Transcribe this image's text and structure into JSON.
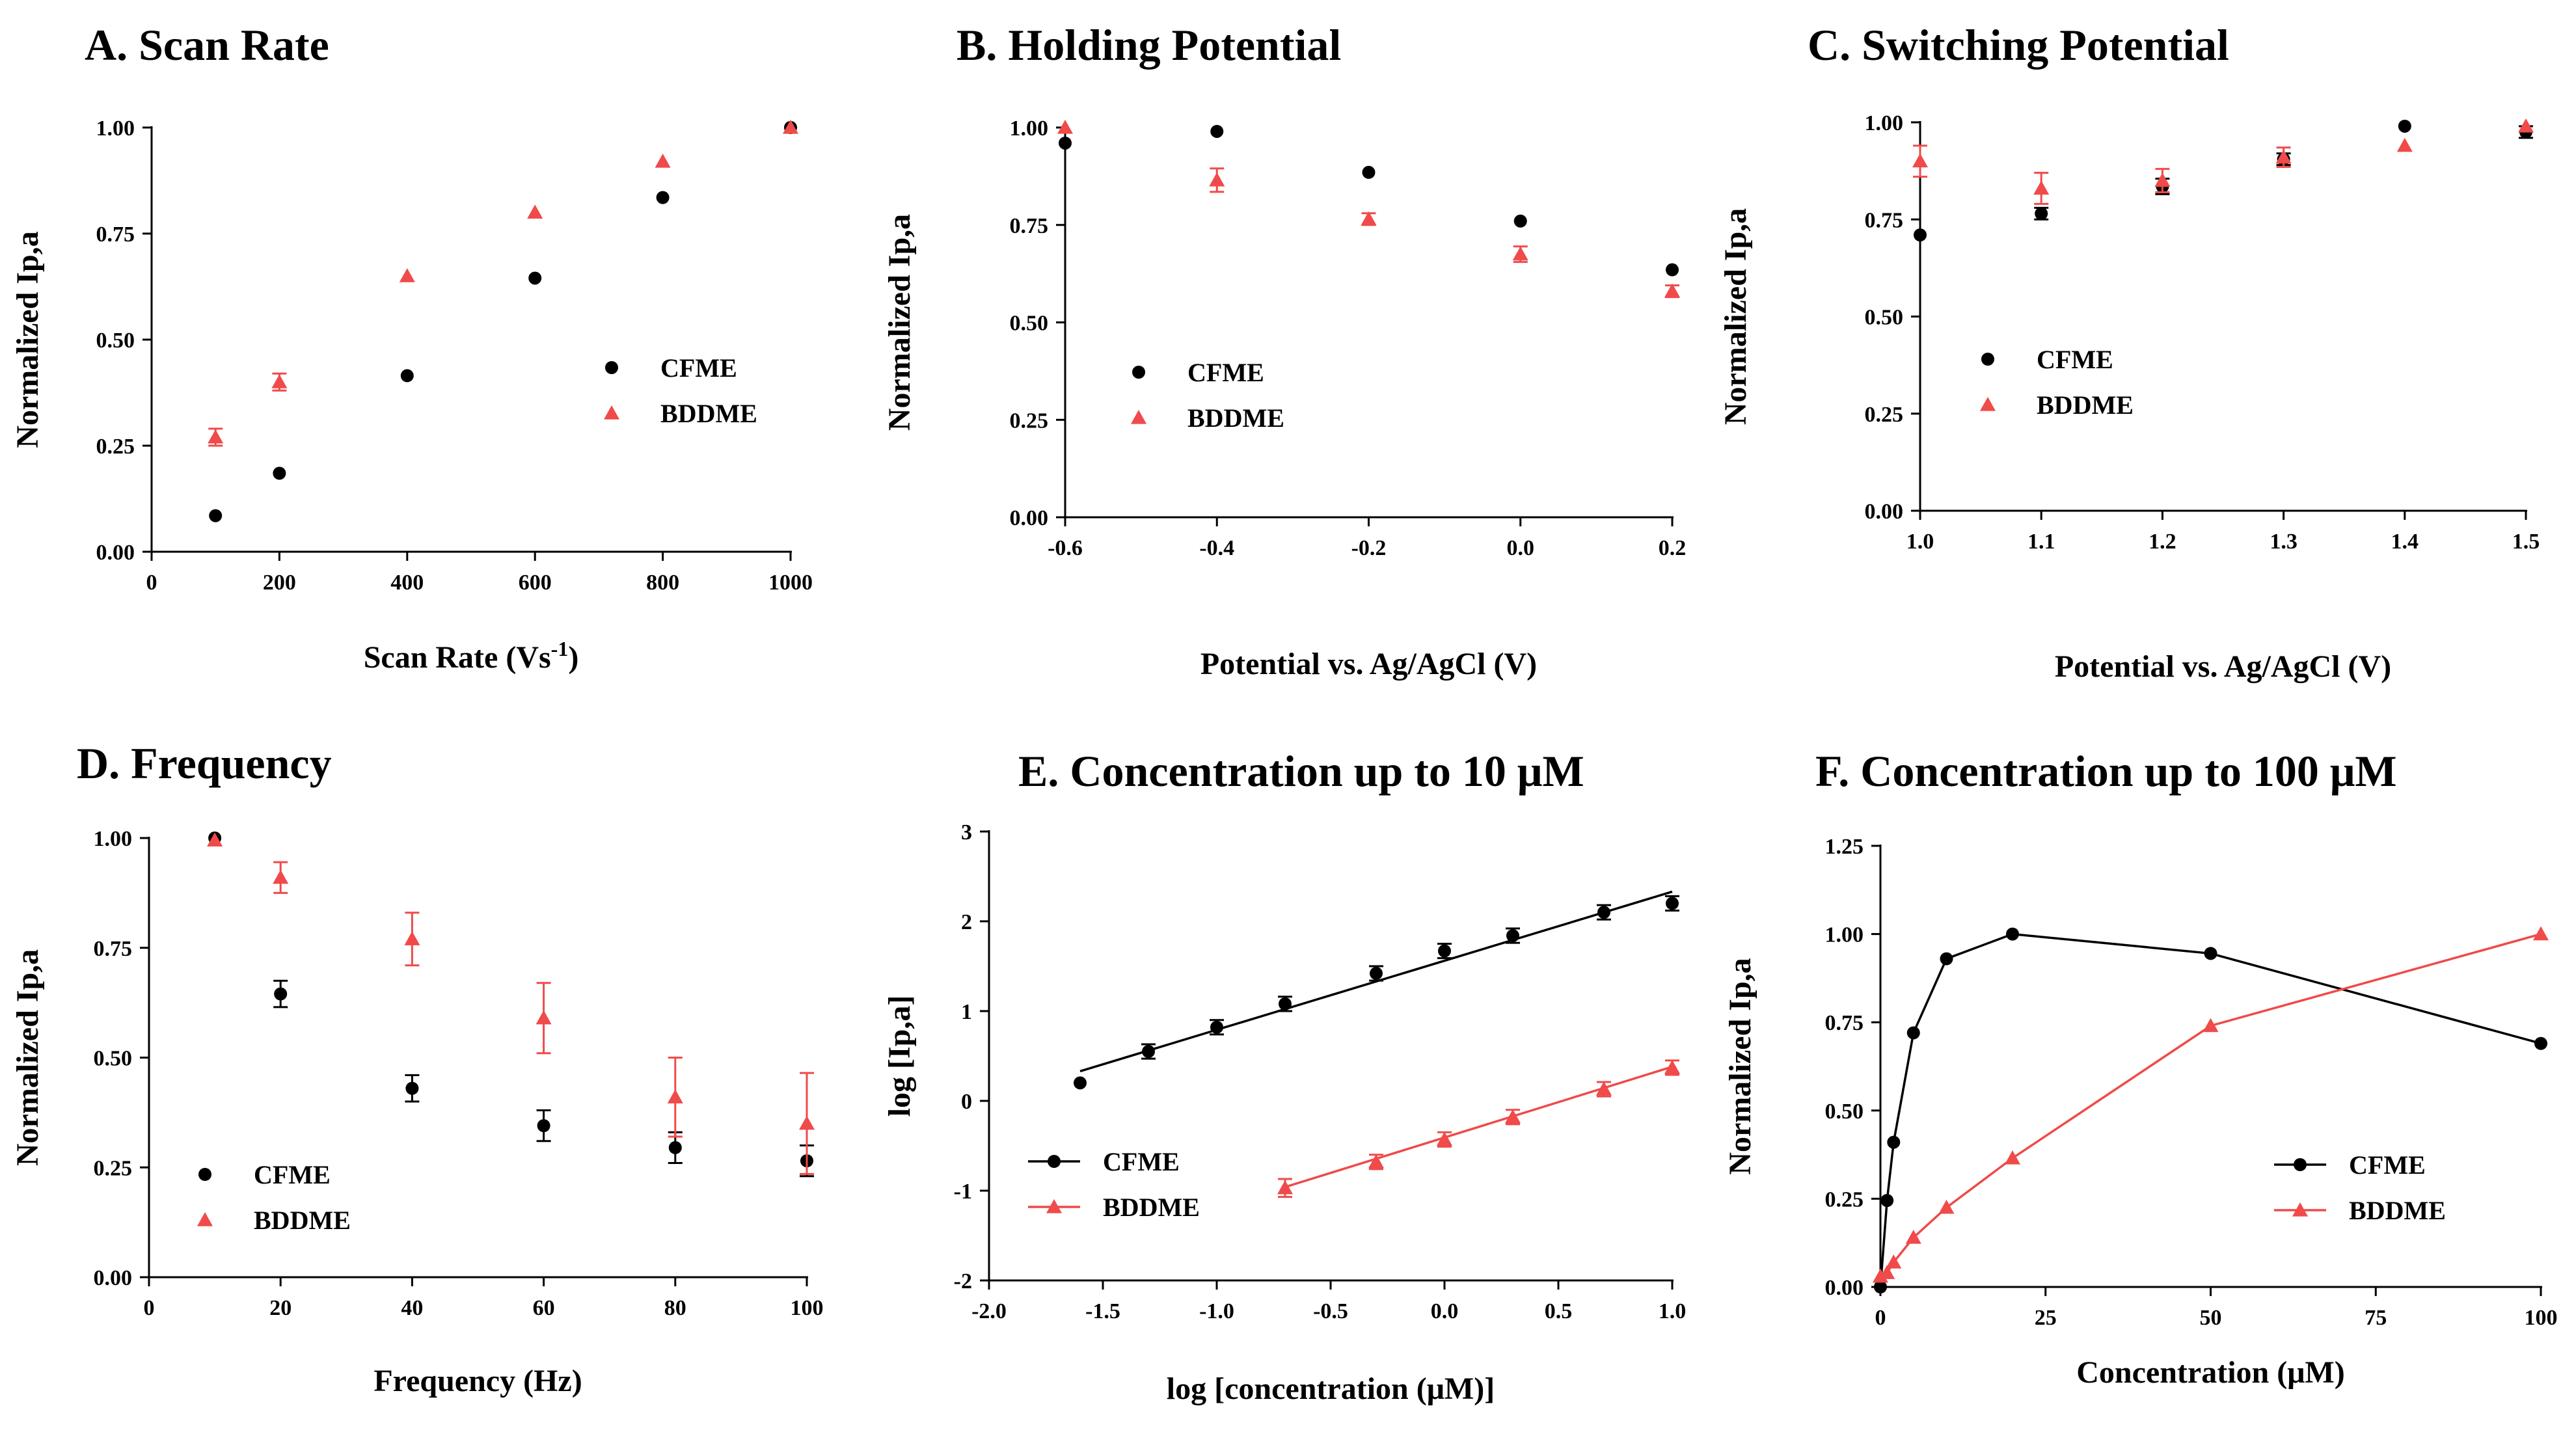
{
  "colors": {
    "cfme": "#000000",
    "bddme": "#f04a4a",
    "axis": "#000000"
  },
  "chart_data": [
    {
      "id": "A",
      "type": "scatter",
      "title": "A. Scan Rate",
      "xlabel": "Scan Rate (Vs",
      "xlabel_sup": "-1",
      "xlabel_end": ")",
      "ylabel": "Normalized Ip,a",
      "xlim": [
        0,
        1000
      ],
      "ylim": [
        0,
        1
      ],
      "xticks": [
        0,
        200,
        400,
        600,
        800,
        1000
      ],
      "yticks": [
        0,
        0.25,
        0.5,
        0.75,
        1.0
      ],
      "xtick_labels": [
        "0",
        "200",
        "400",
        "600",
        "800",
        "1000"
      ],
      "ytick_labels": [
        "0.00",
        "0.25",
        "0.50",
        "0.75",
        "1.00"
      ],
      "legend": {
        "position": "center-right",
        "lines": false
      },
      "series": [
        {
          "name": "CFME",
          "marker": "circle",
          "x": [
            100,
            200,
            400,
            600,
            800,
            1000
          ],
          "y": [
            0.085,
            0.185,
            0.415,
            0.645,
            0.835,
            1.0
          ],
          "err": [
            0,
            0,
            0,
            0,
            0,
            0
          ]
        },
        {
          "name": "BDDME",
          "marker": "triangle",
          "x": [
            100,
            200,
            400,
            600,
            800,
            1000
          ],
          "y": [
            0.27,
            0.4,
            0.65,
            0.8,
            0.92,
            1.0
          ],
          "err": [
            0.02,
            0.02,
            0,
            0,
            0,
            0
          ]
        }
      ]
    },
    {
      "id": "B",
      "type": "scatter",
      "title": "B. Holding Potential",
      "xlabel": "Potential vs. Ag/AgCl (V)",
      "ylabel": "Normalized Ip,a",
      "xlim": [
        -0.6,
        0.2
      ],
      "ylim": [
        0,
        1
      ],
      "xticks": [
        -0.6,
        -0.4,
        -0.2,
        0.0,
        0.2
      ],
      "yticks": [
        0,
        0.25,
        0.5,
        0.75,
        1.0
      ],
      "xtick_labels": [
        "-0.6",
        "-0.4",
        "-0.2",
        "0.0",
        "0.2"
      ],
      "ytick_labels": [
        "0.00",
        "0.25",
        "0.50",
        "0.75",
        "1.00"
      ],
      "legend": {
        "position": "center-left",
        "lines": false
      },
      "series": [
        {
          "name": "CFME",
          "marker": "circle",
          "x": [
            -0.6,
            -0.4,
            -0.2,
            0.0,
            0.2
          ],
          "y": [
            0.96,
            0.99,
            0.885,
            0.76,
            0.635
          ],
          "err": [
            0,
            0,
            0,
            0,
            0
          ]
        },
        {
          "name": "BDDME",
          "marker": "triangle",
          "x": [
            -0.6,
            -0.4,
            -0.2,
            0.0,
            0.2
          ],
          "y": [
            1.0,
            0.865,
            0.765,
            0.675,
            0.58
          ],
          "err": [
            0,
            0.03,
            0.015,
            0.02,
            0.015
          ]
        }
      ]
    },
    {
      "id": "C",
      "type": "scatter",
      "title": "C. Switching Potential",
      "xlabel": "Potential vs. Ag/AgCl (V)",
      "ylabel": "Normalized Ip,a",
      "xlim": [
        1.0,
        1.5
      ],
      "ylim": [
        0,
        1
      ],
      "xticks": [
        1.0,
        1.1,
        1.2,
        1.3,
        1.4,
        1.5
      ],
      "yticks": [
        0,
        0.25,
        0.5,
        0.75,
        1.0
      ],
      "xtick_labels": [
        "1.0",
        "1.1",
        "1.2",
        "1.3",
        "1.4",
        "1.5"
      ],
      "ytick_labels": [
        "0.00",
        "0.25",
        "0.50",
        "0.75",
        "1.00"
      ],
      "legend": {
        "position": "center-left",
        "lines": false
      },
      "series": [
        {
          "name": "CFME",
          "marker": "circle",
          "x": [
            1.0,
            1.1,
            1.2,
            1.3,
            1.4,
            1.5
          ],
          "y": [
            0.71,
            0.765,
            0.835,
            0.905,
            0.99,
            0.975
          ],
          "err": [
            0,
            0.015,
            0.02,
            0.015,
            0,
            0.015
          ]
        },
        {
          "name": "BDDME",
          "marker": "triangle",
          "x": [
            1.0,
            1.1,
            1.2,
            1.3,
            1.4,
            1.5
          ],
          "y": [
            0.9,
            0.83,
            0.85,
            0.91,
            0.94,
            0.99
          ],
          "err": [
            0.04,
            0.04,
            0.03,
            0.025,
            0,
            0
          ]
        }
      ]
    },
    {
      "id": "D",
      "type": "scatter",
      "title": "D. Frequency",
      "xlabel": "Frequency (Hz)",
      "ylabel": "Normalized Ip,a",
      "xlim": [
        0,
        100
      ],
      "ylim": [
        0,
        1
      ],
      "xticks": [
        0,
        20,
        40,
        60,
        80,
        100
      ],
      "yticks": [
        0,
        0.25,
        0.5,
        0.75,
        1.0
      ],
      "xtick_labels": [
        "0",
        "20",
        "40",
        "60",
        "80",
        "100"
      ],
      "ytick_labels": [
        "0.00",
        "0.25",
        "0.50",
        "0.75",
        "1.00"
      ],
      "legend": {
        "position": "bottom-left",
        "lines": false
      },
      "series": [
        {
          "name": "CFME",
          "marker": "circle",
          "x": [
            10,
            20,
            40,
            60,
            80,
            100
          ],
          "y": [
            1.0,
            0.645,
            0.43,
            0.345,
            0.295,
            0.265
          ],
          "err": [
            0,
            0.03,
            0.03,
            0.035,
            0.035,
            0.035
          ]
        },
        {
          "name": "BDDME",
          "marker": "triangle",
          "x": [
            10,
            20,
            40,
            60,
            80,
            100
          ],
          "y": [
            0.995,
            0.91,
            0.77,
            0.59,
            0.41,
            0.35
          ],
          "err": [
            0,
            0.035,
            0.06,
            0.08,
            0.09,
            0.115
          ]
        }
      ]
    },
    {
      "id": "E",
      "type": "line",
      "title": "E. Concentration up to 10 μM",
      "xlabel": "log [concentration (μM)]",
      "ylabel": "log [Ip,a]",
      "xlim": [
        -2.0,
        1.0
      ],
      "ylim": [
        -2,
        3
      ],
      "xticks": [
        -2.0,
        -1.5,
        -1.0,
        -0.5,
        0.0,
        0.5,
        1.0
      ],
      "yticks": [
        -2,
        -1,
        0,
        1,
        2,
        3
      ],
      "xtick_labels": [
        "-2.0",
        "-1.5",
        "-1.0",
        "-0.5",
        "0.0",
        "0.5",
        "1.0"
      ],
      "ytick_labels": [
        "-2",
        "-1",
        "0",
        "1",
        "2",
        "3"
      ],
      "legend": {
        "position": "bottom-left",
        "lines": true
      },
      "series": [
        {
          "name": "CFME",
          "marker": "circle",
          "x": [
            -1.6,
            -1.3,
            -1.0,
            -0.7,
            -0.3,
            0.0,
            0.3,
            0.7,
            1.0
          ],
          "y": [
            0.2,
            0.55,
            0.82,
            1.08,
            1.42,
            1.67,
            1.84,
            2.1,
            2.2
          ],
          "err": [
            0,
            0.08,
            0.08,
            0.08,
            0.08,
            0.08,
            0.08,
            0.08,
            0.08
          ],
          "fit": [
            [
              -1.6,
              0.33
            ],
            [
              1.0,
              2.33
            ]
          ]
        },
        {
          "name": "BDDME",
          "marker": "triangle",
          "x": [
            -0.7,
            -0.3,
            0.0,
            0.3,
            0.7,
            1.0
          ],
          "y": [
            -0.97,
            -0.68,
            -0.43,
            -0.18,
            0.13,
            0.37
          ],
          "err": [
            0.1,
            0.08,
            0.08,
            0.08,
            0.08,
            0.08
          ],
          "fit": [
            [
              -0.7,
              -0.96
            ],
            [
              1.0,
              0.38
            ]
          ]
        }
      ]
    },
    {
      "id": "F",
      "type": "line",
      "title": "F. Concentration up to 100 μM",
      "xlabel": "Concentration (μM)",
      "ylabel": "Normalized Ip,a",
      "xlim": [
        0,
        100
      ],
      "ylim": [
        0,
        1.25
      ],
      "xticks": [
        0,
        25,
        50,
        75,
        100
      ],
      "yticks": [
        0,
        0.25,
        0.5,
        0.75,
        1.0,
        1.25
      ],
      "xtick_labels": [
        "0",
        "25",
        "50",
        "75",
        "100"
      ],
      "ytick_labels": [
        "0.00",
        "0.25",
        "0.50",
        "0.75",
        "1.00",
        "1.25"
      ],
      "legend": {
        "position": "bottom-right",
        "lines": true
      },
      "series": [
        {
          "name": "CFME",
          "marker": "circle",
          "x": [
            0,
            1,
            2,
            5,
            10,
            20,
            50,
            100
          ],
          "y": [
            0.0,
            0.245,
            0.41,
            0.72,
            0.93,
            1.0,
            0.945,
            0.69
          ],
          "err": [
            0,
            0,
            0,
            0,
            0,
            0,
            0,
            0
          ],
          "connect": true
        },
        {
          "name": "BDDME",
          "marker": "triangle",
          "x": [
            0,
            1,
            2,
            5,
            10,
            20,
            50,
            100
          ],
          "y": [
            0.03,
            0.04,
            0.07,
            0.14,
            0.225,
            0.365,
            0.74,
            1.0
          ],
          "err": [
            0,
            0,
            0,
            0,
            0,
            0,
            0,
            0
          ],
          "connect": true
        }
      ]
    }
  ]
}
